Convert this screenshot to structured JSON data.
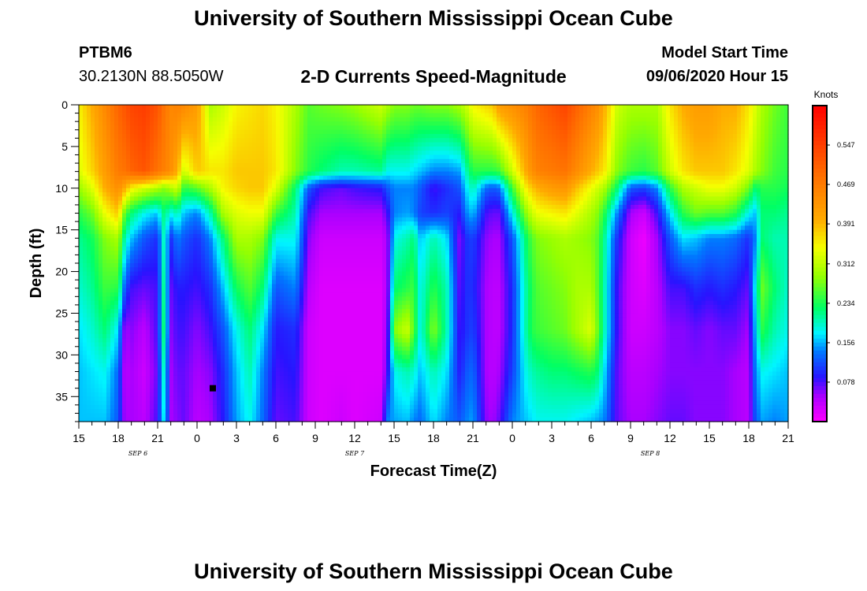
{
  "title": "University of Southern Mississippi Ocean Cube",
  "footer_title": "University of Southern Mississippi Ocean Cube",
  "station": {
    "id": "PTBM6",
    "coords": "30.2130N 88.5050W"
  },
  "plot_title": "2-D Currents Speed-Magnitude",
  "model": {
    "label": "Model Start Time",
    "value": "09/06/2020 Hour 15"
  },
  "chart_data": {
    "type": "heatmap",
    "title": "2-D Currents Speed-Magnitude",
    "xlabel": "Forecast Time(Z)",
    "ylabel": "Depth (ft)",
    "x_range_hours": [
      0,
      54
    ],
    "x_start_hour": 15,
    "x_tick_step_hours": 3,
    "x_tick_labels": [
      "15",
      "18",
      "21",
      "0",
      "3",
      "6",
      "9",
      "12",
      "15",
      "18",
      "21",
      "0",
      "3",
      "6",
      "9",
      "12",
      "15",
      "18",
      "21"
    ],
    "date_labels": [
      {
        "hour": 4.5,
        "label": "SEP 6"
      },
      {
        "hour": 21,
        "label": "SEP 7"
      },
      {
        "hour": 43.5,
        "label": "SEP 8"
      }
    ],
    "y_range_ft": [
      0,
      38
    ],
    "y_ticks": [
      0,
      5,
      10,
      15,
      20,
      25,
      30,
      35
    ],
    "colorbar": {
      "unit": "Knots",
      "range": [
        0,
        0.625
      ],
      "ticks": [
        "0.547",
        "0.469",
        "0.391",
        "0.312",
        "0.234",
        "0.156",
        "0.078"
      ],
      "tick_values": [
        0.547,
        0.469,
        0.391,
        0.312,
        0.234,
        0.156,
        0.078
      ]
    },
    "depths_ft": [
      0,
      8,
      10,
      13,
      16,
      22,
      27,
      32,
      38
    ],
    "times_h": [
      0,
      1,
      2,
      3,
      3.5,
      4,
      5,
      6,
      6.5,
      7,
      7.5,
      8,
      9,
      10,
      11,
      12,
      13,
      14,
      15,
      16.5,
      17.5,
      18.5,
      20,
      21,
      23,
      23.5,
      24,
      25,
      25.5,
      26,
      27,
      28,
      29,
      29.5,
      30,
      31,
      31.5,
      32,
      33,
      34,
      34.5,
      35,
      36,
      37,
      38,
      39,
      39.5,
      40,
      41,
      42,
      43,
      44,
      45,
      46,
      47,
      48,
      49,
      50,
      51,
      51.5,
      52,
      53,
      54
    ],
    "speed_knots": [
      [
        0.35,
        0.33,
        0.29,
        0.24,
        0.21,
        0.19,
        0.17,
        0.16,
        0.16
      ],
      [
        0.4,
        0.37,
        0.33,
        0.27,
        0.23,
        0.21,
        0.19,
        0.17,
        0.16
      ],
      [
        0.45,
        0.42,
        0.4,
        0.34,
        0.28,
        0.25,
        0.22,
        0.18,
        0.16
      ],
      [
        0.5,
        0.47,
        0.44,
        0.38,
        0.3,
        0.24,
        0.17,
        0.13,
        0.12
      ],
      [
        0.52,
        0.48,
        0.4,
        0.26,
        0.2,
        0.12,
        0.05,
        0.04,
        0.05
      ],
      [
        0.54,
        0.5,
        0.35,
        0.22,
        0.16,
        0.08,
        0.06,
        0.05,
        0.05
      ],
      [
        0.55,
        0.52,
        0.32,
        0.18,
        0.12,
        0.07,
        0.04,
        0.03,
        0.04
      ],
      [
        0.52,
        0.48,
        0.3,
        0.16,
        0.1,
        0.08,
        0.08,
        0.07,
        0.08
      ],
      [
        0.48,
        0.46,
        0.28,
        0.22,
        0.2,
        0.22,
        0.23,
        0.2,
        0.18
      ],
      [
        0.45,
        0.44,
        0.3,
        0.18,
        0.1,
        0.07,
        0.06,
        0.05,
        0.05
      ],
      [
        0.46,
        0.4,
        0.32,
        0.2,
        0.14,
        0.09,
        0.08,
        0.07,
        0.06
      ],
      [
        0.45,
        0.32,
        0.24,
        0.16,
        0.12,
        0.09,
        0.08,
        0.07,
        0.07
      ],
      [
        0.42,
        0.38,
        0.26,
        0.14,
        0.1,
        0.08,
        0.06,
        0.05,
        0.04
      ],
      [
        0.3,
        0.36,
        0.3,
        0.2,
        0.14,
        0.1,
        0.08,
        0.06,
        0.05
      ],
      [
        0.32,
        0.36,
        0.35,
        0.3,
        0.22,
        0.16,
        0.12,
        0.1,
        0.09
      ],
      [
        0.35,
        0.38,
        0.37,
        0.33,
        0.3,
        0.23,
        0.18,
        0.16,
        0.15
      ],
      [
        0.36,
        0.38,
        0.38,
        0.34,
        0.3,
        0.26,
        0.22,
        0.2,
        0.18
      ],
      [
        0.37,
        0.38,
        0.38,
        0.34,
        0.28,
        0.22,
        0.17,
        0.14,
        0.13
      ],
      [
        0.35,
        0.36,
        0.33,
        0.25,
        0.18,
        0.12,
        0.09,
        0.08,
        0.07
      ],
      [
        0.3,
        0.28,
        0.22,
        0.2,
        0.18,
        0.14,
        0.1,
        0.09,
        0.08
      ],
      [
        0.26,
        0.24,
        0.12,
        0.08,
        0.06,
        0.04,
        0.03,
        0.03,
        0.03
      ],
      [
        0.27,
        0.22,
        0.08,
        0.05,
        0.03,
        0.02,
        0.02,
        0.02,
        0.02
      ],
      [
        0.28,
        0.2,
        0.07,
        0.05,
        0.03,
        0.02,
        0.02,
        0.02,
        0.03
      ],
      [
        0.29,
        0.2,
        0.08,
        0.05,
        0.03,
        0.02,
        0.02,
        0.02,
        0.02
      ],
      [
        0.32,
        0.21,
        0.09,
        0.05,
        0.03,
        0.02,
        0.02,
        0.02,
        0.03
      ],
      [
        0.3,
        0.18,
        0.12,
        0.08,
        0.05,
        0.05,
        0.06,
        0.08,
        0.14
      ],
      [
        0.28,
        0.18,
        0.14,
        0.14,
        0.18,
        0.22,
        0.28,
        0.18,
        0.15
      ],
      [
        0.28,
        0.18,
        0.14,
        0.15,
        0.2,
        0.24,
        0.32,
        0.2,
        0.16
      ],
      [
        0.27,
        0.17,
        0.14,
        0.14,
        0.22,
        0.25,
        0.26,
        0.19,
        0.14
      ],
      [
        0.27,
        0.16,
        0.12,
        0.11,
        0.16,
        0.18,
        0.18,
        0.16,
        0.13
      ],
      [
        0.28,
        0.14,
        0.08,
        0.1,
        0.2,
        0.24,
        0.28,
        0.2,
        0.17
      ],
      [
        0.28,
        0.14,
        0.1,
        0.11,
        0.17,
        0.2,
        0.2,
        0.17,
        0.14
      ],
      [
        0.3,
        0.15,
        0.12,
        0.09,
        0.06,
        0.07,
        0.08,
        0.09,
        0.12
      ],
      [
        0.32,
        0.2,
        0.17,
        0.14,
        0.1,
        0.1,
        0.1,
        0.12,
        0.14
      ],
      [
        0.35,
        0.24,
        0.2,
        0.16,
        0.11,
        0.1,
        0.11,
        0.13,
        0.15
      ],
      [
        0.37,
        0.24,
        0.13,
        0.08,
        0.06,
        0.05,
        0.05,
        0.05,
        0.06
      ],
      [
        0.38,
        0.24,
        0.12,
        0.07,
        0.05,
        0.04,
        0.04,
        0.04,
        0.05
      ],
      [
        0.42,
        0.25,
        0.13,
        0.07,
        0.05,
        0.04,
        0.04,
        0.05,
        0.07
      ],
      [
        0.44,
        0.32,
        0.25,
        0.18,
        0.12,
        0.1,
        0.1,
        0.11,
        0.14
      ],
      [
        0.46,
        0.4,
        0.35,
        0.28,
        0.22,
        0.2,
        0.2,
        0.18,
        0.16
      ],
      [
        0.48,
        0.44,
        0.38,
        0.32,
        0.26,
        0.24,
        0.24,
        0.2,
        0.17
      ],
      [
        0.5,
        0.46,
        0.4,
        0.34,
        0.28,
        0.26,
        0.25,
        0.21,
        0.18
      ],
      [
        0.52,
        0.47,
        0.42,
        0.35,
        0.29,
        0.27,
        0.26,
        0.22,
        0.18
      ],
      [
        0.54,
        0.48,
        0.43,
        0.36,
        0.3,
        0.28,
        0.27,
        0.22,
        0.18
      ],
      [
        0.5,
        0.44,
        0.38,
        0.33,
        0.29,
        0.3,
        0.3,
        0.23,
        0.17
      ],
      [
        0.46,
        0.4,
        0.34,
        0.3,
        0.28,
        0.3,
        0.33,
        0.24,
        0.16
      ],
      [
        0.44,
        0.38,
        0.32,
        0.28,
        0.26,
        0.26,
        0.27,
        0.22,
        0.15
      ],
      [
        0.4,
        0.36,
        0.3,
        0.24,
        0.21,
        0.2,
        0.2,
        0.17,
        0.14
      ],
      [
        0.32,
        0.28,
        0.22,
        0.14,
        0.1,
        0.08,
        0.08,
        0.07,
        0.07
      ],
      [
        0.3,
        0.25,
        0.12,
        0.05,
        0.03,
        0.03,
        0.03,
        0.04,
        0.05
      ],
      [
        0.3,
        0.24,
        0.11,
        0.03,
        0.01,
        0.02,
        0.03,
        0.04,
        0.05
      ],
      [
        0.3,
        0.26,
        0.14,
        0.08,
        0.05,
        0.04,
        0.04,
        0.05,
        0.06
      ],
      [
        0.36,
        0.32,
        0.24,
        0.17,
        0.12,
        0.08,
        0.06,
        0.06,
        0.07
      ],
      [
        0.4,
        0.36,
        0.3,
        0.24,
        0.17,
        0.08,
        0.06,
        0.06,
        0.07
      ],
      [
        0.42,
        0.38,
        0.32,
        0.27,
        0.16,
        0.1,
        0.07,
        0.06,
        0.06
      ],
      [
        0.42,
        0.38,
        0.34,
        0.26,
        0.14,
        0.09,
        0.06,
        0.06,
        0.06
      ],
      [
        0.4,
        0.38,
        0.34,
        0.26,
        0.14,
        0.1,
        0.07,
        0.06,
        0.06
      ],
      [
        0.4,
        0.36,
        0.32,
        0.24,
        0.13,
        0.09,
        0.07,
        0.05,
        0.05
      ],
      [
        0.36,
        0.33,
        0.27,
        0.18,
        0.1,
        0.07,
        0.05,
        0.04,
        0.04
      ],
      [
        0.33,
        0.3,
        0.22,
        0.16,
        0.14,
        0.18,
        0.16,
        0.14,
        0.12
      ],
      [
        0.3,
        0.28,
        0.24,
        0.22,
        0.22,
        0.27,
        0.24,
        0.18,
        0.15
      ],
      [
        0.27,
        0.25,
        0.24,
        0.22,
        0.2,
        0.22,
        0.2,
        0.17,
        0.14
      ],
      [
        0.25,
        0.24,
        0.23,
        0.21,
        0.2,
        0.19,
        0.18,
        0.16,
        0.15
      ]
    ],
    "marker": {
      "hour": 10.2,
      "depth_ft": 34
    }
  }
}
